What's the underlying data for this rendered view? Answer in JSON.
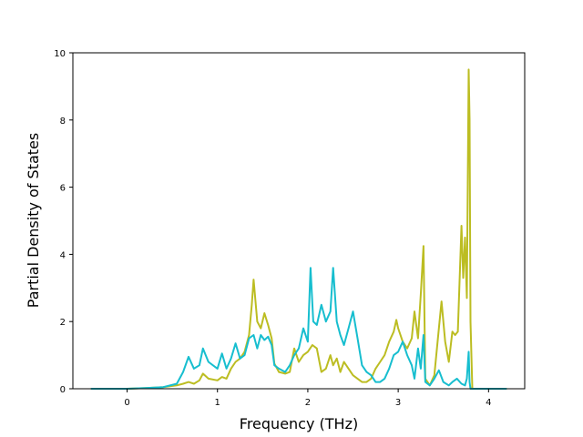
{
  "chart_data": {
    "type": "line",
    "title": "",
    "xlabel": "Frequency (THz)",
    "ylabel": "Partial Density of States",
    "xlim": [
      -0.6,
      4.4
    ],
    "ylim": [
      0,
      10
    ],
    "x_ticks": [
      "0",
      "1",
      "2",
      "3",
      "4"
    ],
    "y_ticks": [
      "0",
      "2",
      "4",
      "6",
      "8",
      "10"
    ],
    "grid": false,
    "series": [
      {
        "color": "#bcbd22",
        "x": [
          -0.4,
          0.0,
          0.2,
          0.4,
          0.55,
          0.62,
          0.68,
          0.74,
          0.8,
          0.84,
          0.9,
          1.0,
          1.05,
          1.1,
          1.15,
          1.2,
          1.25,
          1.3,
          1.35,
          1.38,
          1.4,
          1.44,
          1.48,
          1.52,
          1.56,
          1.6,
          1.63,
          1.68,
          1.75,
          1.8,
          1.85,
          1.9,
          1.95,
          2.0,
          2.05,
          2.1,
          2.15,
          2.2,
          2.25,
          2.28,
          2.32,
          2.36,
          2.4,
          2.45,
          2.5,
          2.55,
          2.6,
          2.65,
          2.7,
          2.75,
          2.8,
          2.85,
          2.9,
          2.95,
          2.98,
          3.0,
          3.05,
          3.1,
          3.15,
          3.18,
          3.22,
          3.25,
          3.28,
          3.3,
          3.35,
          3.4,
          3.45,
          3.48,
          3.52,
          3.56,
          3.6,
          3.63,
          3.66,
          3.7,
          3.72,
          3.74,
          3.76,
          3.78,
          3.79,
          3.8,
          3.82,
          4.2
        ],
        "values": [
          0.0,
          0.0,
          0.02,
          0.05,
          0.1,
          0.15,
          0.2,
          0.15,
          0.25,
          0.45,
          0.3,
          0.25,
          0.35,
          0.3,
          0.6,
          0.8,
          0.9,
          1.1,
          1.6,
          2.5,
          3.25,
          2.0,
          1.8,
          2.25,
          1.9,
          1.5,
          0.75,
          0.5,
          0.45,
          0.5,
          1.2,
          0.8,
          1.0,
          1.1,
          1.3,
          1.2,
          0.5,
          0.6,
          1.0,
          0.7,
          0.9,
          0.5,
          0.8,
          0.6,
          0.4,
          0.3,
          0.2,
          0.2,
          0.3,
          0.6,
          0.8,
          1.0,
          1.4,
          1.7,
          2.05,
          1.8,
          1.4,
          1.2,
          1.5,
          2.3,
          1.5,
          2.8,
          4.25,
          0.3,
          0.1,
          0.4,
          1.8,
          2.6,
          1.4,
          0.8,
          1.7,
          1.6,
          1.7,
          4.85,
          3.3,
          4.5,
          2.7,
          9.5,
          8.0,
          2.0,
          0.0,
          0.0
        ]
      },
      {
        "color": "#17becf",
        "x": [
          -0.4,
          0.0,
          0.2,
          0.4,
          0.55,
          0.62,
          0.68,
          0.74,
          0.8,
          0.84,
          0.9,
          1.0,
          1.05,
          1.1,
          1.15,
          1.2,
          1.25,
          1.3,
          1.35,
          1.4,
          1.44,
          1.48,
          1.52,
          1.56,
          1.6,
          1.63,
          1.68,
          1.75,
          1.8,
          1.85,
          1.9,
          1.95,
          2.0,
          2.03,
          2.06,
          2.1,
          2.15,
          2.2,
          2.25,
          2.28,
          2.32,
          2.36,
          2.4,
          2.45,
          2.5,
          2.55,
          2.6,
          2.65,
          2.7,
          2.75,
          2.8,
          2.85,
          2.9,
          2.95,
          3.0,
          3.05,
          3.1,
          3.15,
          3.18,
          3.22,
          3.25,
          3.28,
          3.3,
          3.35,
          3.4,
          3.45,
          3.5,
          3.56,
          3.6,
          3.65,
          3.7,
          3.74,
          3.76,
          3.78,
          3.79,
          3.8,
          3.82,
          4.2
        ],
        "values": [
          0.0,
          0.0,
          0.02,
          0.05,
          0.15,
          0.5,
          0.95,
          0.6,
          0.7,
          1.2,
          0.8,
          0.6,
          1.05,
          0.6,
          0.9,
          1.35,
          0.9,
          1.0,
          1.5,
          1.6,
          1.2,
          1.6,
          1.45,
          1.55,
          1.3,
          0.7,
          0.6,
          0.5,
          0.7,
          1.0,
          1.2,
          1.8,
          1.4,
          3.6,
          2.0,
          1.9,
          2.5,
          2.0,
          2.3,
          3.6,
          2.0,
          1.6,
          1.3,
          1.8,
          2.3,
          1.5,
          0.7,
          0.5,
          0.4,
          0.2,
          0.2,
          0.3,
          0.6,
          1.0,
          1.1,
          1.4,
          1.0,
          0.7,
          0.3,
          1.2,
          0.6,
          1.6,
          0.2,
          0.1,
          0.3,
          0.55,
          0.2,
          0.1,
          0.2,
          0.3,
          0.15,
          0.1,
          0.3,
          1.1,
          0.2,
          0.0,
          0.0,
          0.0
        ]
      }
    ]
  }
}
